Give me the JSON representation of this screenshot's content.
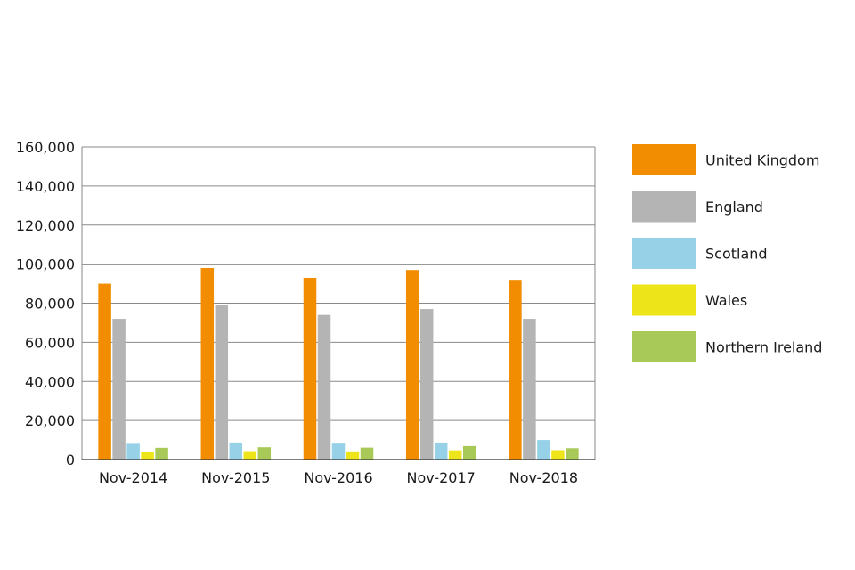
{
  "chart_data": {
    "type": "bar",
    "title": "",
    "xlabel": "",
    "ylabel": "",
    "categories": [
      "Nov-2014",
      "Nov-2015",
      "Nov-2016",
      "Nov-2017",
      "Nov-2018"
    ],
    "series": [
      {
        "name": "United Kingdom",
        "color": "#f28c00",
        "values": [
          90000,
          98000,
          93000,
          97000,
          92000
        ]
      },
      {
        "name": "England",
        "color": "#b4b4b4",
        "values": [
          72000,
          79000,
          74000,
          77000,
          72000
        ]
      },
      {
        "name": "Scotland",
        "color": "#96d1e8",
        "values": [
          8500,
          8700,
          8600,
          8700,
          10000
        ]
      },
      {
        "name": "Wales",
        "color": "#eee41a",
        "values": [
          3800,
          4300,
          4200,
          4700,
          4800
        ]
      },
      {
        "name": "Northern Ireland",
        "color": "#a8c957",
        "values": [
          6000,
          6300,
          6100,
          6900,
          5800
        ]
      }
    ],
    "ylim": [
      0,
      160000
    ],
    "yticks": [
      0,
      20000,
      40000,
      60000,
      80000,
      100000,
      120000,
      140000,
      160000
    ],
    "ytick_labels": [
      "0",
      "20,000",
      "40,000",
      "60,000",
      "80,000",
      "100,000",
      "120,000",
      "140,000",
      "160,000"
    ],
    "grid": true,
    "legend_position": "right"
  }
}
